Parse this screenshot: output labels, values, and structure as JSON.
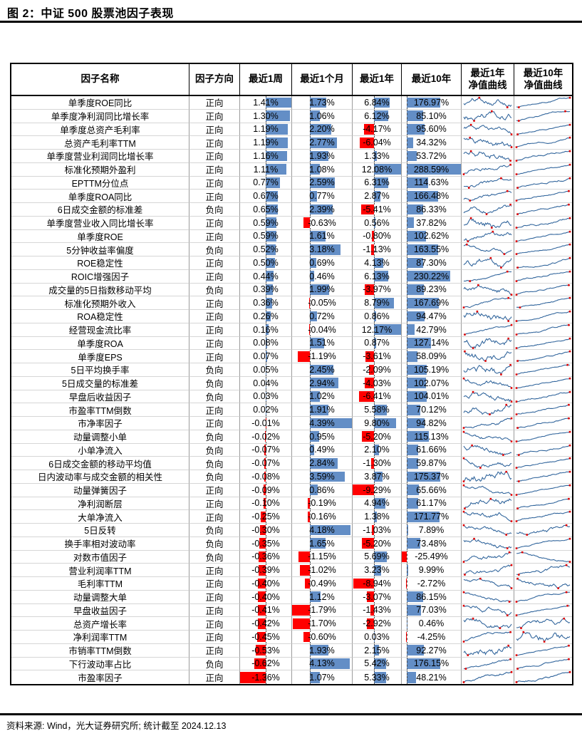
{
  "title": "图 2：中证 500 股票池因子表现",
  "footer": "资料来源: Wind，光大证券研究所; 统计截至 2024.12.13",
  "colors": {
    "bar_positive": "#638EC6",
    "bar_negative": "#FF0000",
    "sparkline_line": "#31659C",
    "sparkline_marker": "#E00000",
    "rule": "#000000"
  },
  "table": {
    "headers": [
      "因子名称",
      "因子方向",
      "最近1周",
      "最近1个月",
      "最近1年",
      "最近10年",
      "最近1年\n净值曲线",
      "最近10年\n净值曲线"
    ],
    "rows": [
      {
        "name": "单季度ROE同比",
        "dir": "正向",
        "w1": "1.41%",
        "m1": "1.73%",
        "y1": "6.84%",
        "y10": "176.97%"
      },
      {
        "name": "单季度净利润同比增长率",
        "dir": "正向",
        "w1": "1.30%",
        "m1": "1.06%",
        "y1": "6.12%",
        "y10": "85.10%"
      },
      {
        "name": "单季度总资产毛利率",
        "dir": "正向",
        "w1": "1.19%",
        "m1": "2.20%",
        "y1": "-4.17%",
        "y10": "95.60%"
      },
      {
        "name": "总资产毛利率TTM",
        "dir": "正向",
        "w1": "1.19%",
        "m1": "2.77%",
        "y1": "-6.04%",
        "y10": "34.32%"
      },
      {
        "name": "单季度营业利润同比增长率",
        "dir": "正向",
        "w1": "1.16%",
        "m1": "1.93%",
        "y1": "1.33%",
        "y10": "53.72%"
      },
      {
        "name": "标准化预期外盈利",
        "dir": "正向",
        "w1": "1.11%",
        "m1": "1.08%",
        "y1": "12.08%",
        "y10": "288.59%"
      },
      {
        "name": "EPTTM分位点",
        "dir": "正向",
        "w1": "0.77%",
        "m1": "2.59%",
        "y1": "6.31%",
        "y10": "114.63%"
      },
      {
        "name": "单季度ROA同比",
        "dir": "正向",
        "w1": "0.67%",
        "m1": "0.77%",
        "y1": "2.87%",
        "y10": "166.48%"
      },
      {
        "name": "6日成交金额的标准差",
        "dir": "负向",
        "w1": "0.65%",
        "m1": "2.39%",
        "y1": "-5.41%",
        "y10": "86.33%"
      },
      {
        "name": "单季度营业收入同比增长率",
        "dir": "正向",
        "w1": "0.59%",
        "m1": "-0.63%",
        "y1": "0.56%",
        "y10": "37.82%"
      },
      {
        "name": "单季度ROE",
        "dir": "正向",
        "w1": "0.59%",
        "m1": "1.61%",
        "y1": "-0.80%",
        "y10": "102.62%"
      },
      {
        "name": "5分钟收益率偏度",
        "dir": "负向",
        "w1": "0.52%",
        "m1": "3.18%",
        "y1": "-1.13%",
        "y10": "163.55%"
      },
      {
        "name": "ROE稳定性",
        "dir": "正向",
        "w1": "0.50%",
        "m1": "0.69%",
        "y1": "4.13%",
        "y10": "87.30%"
      },
      {
        "name": "ROIC增强因子",
        "dir": "正向",
        "w1": "0.44%",
        "m1": "0.46%",
        "y1": "6.13%",
        "y10": "230.22%"
      },
      {
        "name": "成交量的5日指数移动平均",
        "dir": "负向",
        "w1": "0.39%",
        "m1": "1.99%",
        "y1": "-3.97%",
        "y10": "89.23%"
      },
      {
        "name": "标准化预期外收入",
        "dir": "正向",
        "w1": "0.36%",
        "m1": "-0.05%",
        "y1": "8.79%",
        "y10": "167.69%"
      },
      {
        "name": "ROA稳定性",
        "dir": "正向",
        "w1": "0.26%",
        "m1": "0.72%",
        "y1": "0.86%",
        "y10": "94.47%"
      },
      {
        "name": "经营现金流比率",
        "dir": "正向",
        "w1": "0.16%",
        "m1": "-0.04%",
        "y1": "12.17%",
        "y10": "42.79%"
      },
      {
        "name": "单季度ROA",
        "dir": "正向",
        "w1": "0.08%",
        "m1": "1.51%",
        "y1": "0.87%",
        "y10": "127.14%"
      },
      {
        "name": "单季度EPS",
        "dir": "正向",
        "w1": "0.07%",
        "m1": "-1.19%",
        "y1": "-3.61%",
        "y10": "58.09%"
      },
      {
        "name": "5日平均换手率",
        "dir": "负向",
        "w1": "0.05%",
        "m1": "2.45%",
        "y1": "-2.09%",
        "y10": "105.19%"
      },
      {
        "name": "5日成交量的标准差",
        "dir": "负向",
        "w1": "0.04%",
        "m1": "2.94%",
        "y1": "-4.03%",
        "y10": "102.07%"
      },
      {
        "name": "早盘后收益因子",
        "dir": "负向",
        "w1": "0.03%",
        "m1": "1.02%",
        "y1": "-6.41%",
        "y10": "104.01%"
      },
      {
        "name": "市盈率TTM倒数",
        "dir": "正向",
        "w1": "0.02%",
        "m1": "1.91%",
        "y1": "5.58%",
        "y10": "70.12%"
      },
      {
        "name": "市净率因子",
        "dir": "正向",
        "w1": "-0.01%",
        "m1": "4.39%",
        "y1": "9.80%",
        "y10": "94.82%"
      },
      {
        "name": "动量调整小单",
        "dir": "负向",
        "w1": "-0.02%",
        "m1": "0.95%",
        "y1": "-5.20%",
        "y10": "115.13%"
      },
      {
        "name": "小单净流入",
        "dir": "负向",
        "w1": "-0.07%",
        "m1": "0.49%",
        "y1": "2.10%",
        "y10": "61.66%"
      },
      {
        "name": "6日成交金额的移动平均值",
        "dir": "负向",
        "w1": "-0.07%",
        "m1": "2.84%",
        "y1": "-1.30%",
        "y10": "59.87%"
      },
      {
        "name": "日内波动率与成交金额的相关性",
        "dir": "负向",
        "w1": "-0.08%",
        "m1": "3.59%",
        "y1": "3.87%",
        "y10": "175.37%"
      },
      {
        "name": "动量弹簧因子",
        "dir": "正向",
        "w1": "-0.09%",
        "m1": "0.86%",
        "y1": "-9.29%",
        "y10": "65.66%"
      },
      {
        "name": "净利润断层",
        "dir": "正向",
        "w1": "-0.10%",
        "m1": "-0.19%",
        "y1": "4.94%",
        "y10": "61.17%"
      },
      {
        "name": "大单净流入",
        "dir": "正向",
        "w1": "-0.25%",
        "m1": "-0.16%",
        "y1": "1.38%",
        "y10": "171.77%"
      },
      {
        "name": "5日反转",
        "dir": "负向",
        "w1": "-0.30%",
        "m1": "4.18%",
        "y1": "-1.03%",
        "y10": "7.89%"
      },
      {
        "name": "换手率相对波动率",
        "dir": "负向",
        "w1": "-0.35%",
        "m1": "1.65%",
        "y1": "-5.20%",
        "y10": "73.48%"
      },
      {
        "name": "对数市值因子",
        "dir": "负向",
        "w1": "-0.36%",
        "m1": "-1.15%",
        "y1": "5.69%",
        "y10": "-25.49%"
      },
      {
        "name": "营业利润率TTM",
        "dir": "正向",
        "w1": "-0.39%",
        "m1": "-1.02%",
        "y1": "3.23%",
        "y10": "9.99%"
      },
      {
        "name": "毛利率TTM",
        "dir": "正向",
        "w1": "-0.40%",
        "m1": "-0.49%",
        "y1": "-8.94%",
        "y10": "-2.72%"
      },
      {
        "name": "动量调整大单",
        "dir": "正向",
        "w1": "-0.40%",
        "m1": "1.12%",
        "y1": "-3.07%",
        "y10": "86.15%"
      },
      {
        "name": "早盘收益因子",
        "dir": "正向",
        "w1": "-0.41%",
        "m1": "-1.79%",
        "y1": "-1.43%",
        "y10": "77.03%"
      },
      {
        "name": "总资产增长率",
        "dir": "正向",
        "w1": "-0.42%",
        "m1": "-1.70%",
        "y1": "-2.92%",
        "y10": "0.46%"
      },
      {
        "name": "净利润率TTM",
        "dir": "正向",
        "w1": "-0.45%",
        "m1": "-0.60%",
        "y1": "0.03%",
        "y10": "-4.25%"
      },
      {
        "name": "市销率TTM倒数",
        "dir": "正向",
        "w1": "-0.53%",
        "m1": "1.93%",
        "y1": "2.15%",
        "y10": "92.27%"
      },
      {
        "name": "下行波动率占比",
        "dir": "负向",
        "w1": "-0.62%",
        "m1": "4.13%",
        "y1": "5.42%",
        "y10": "176.15%"
      },
      {
        "name": "市盈率因子",
        "dir": "正向",
        "w1": "-1.36%",
        "m1": "1.07%",
        "y1": "5.33%",
        "y10": "48.21%"
      }
    ]
  }
}
